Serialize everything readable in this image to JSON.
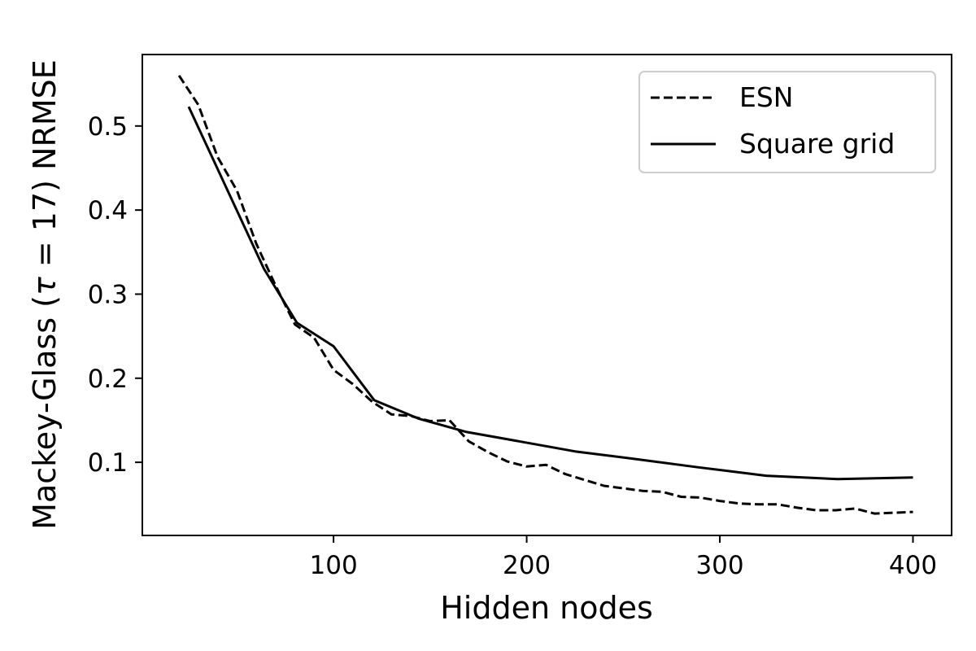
{
  "chart_data": {
    "type": "line",
    "xlabel": "Hidden nodes",
    "ylabel_prefix": "Mackey-Glass (",
    "ylabel_tau": "τ",
    "ylabel_suffix": " = 17) NRMSE",
    "xlim": [
      1,
      420
    ],
    "ylim": [
      0.013,
      0.585
    ],
    "xticks": [
      100,
      200,
      300,
      400
    ],
    "yticks": [
      0.1,
      0.2,
      0.3,
      0.4,
      0.5
    ],
    "xtick_labels": [
      "100",
      "200",
      "300",
      "400"
    ],
    "ytick_labels": [
      "0.1",
      "0.2",
      "0.3",
      "0.4",
      "0.5"
    ],
    "grid": false,
    "legend_position": "top-right",
    "series": [
      {
        "name": "ESN",
        "linestyle": "dashed",
        "color": "#000000",
        "x": [
          20,
          30,
          40,
          50,
          60,
          70,
          80,
          90,
          100,
          110,
          120,
          130,
          140,
          150,
          160,
          170,
          180,
          190,
          200,
          210,
          220,
          230,
          240,
          250,
          260,
          270,
          280,
          290,
          300,
          310,
          320,
          330,
          340,
          350,
          360,
          370,
          380,
          390,
          400
        ],
        "y": [
          0.56,
          0.525,
          0.463,
          0.423,
          0.36,
          0.31,
          0.264,
          0.248,
          0.21,
          0.193,
          0.172,
          0.157,
          0.155,
          0.149,
          0.15,
          0.125,
          0.112,
          0.101,
          0.095,
          0.097,
          0.086,
          0.079,
          0.072,
          0.069,
          0.066,
          0.065,
          0.059,
          0.058,
          0.054,
          0.051,
          0.05,
          0.05,
          0.046,
          0.043,
          0.043,
          0.045,
          0.039,
          0.04,
          0.041
        ]
      },
      {
        "name": "Square grid",
        "linestyle": "solid",
        "color": "#000000",
        "x": [
          25,
          64,
          81,
          100,
          121,
          144,
          169,
          196,
          225,
          256,
          289,
          324,
          361,
          400
        ],
        "y": [
          0.523,
          0.33,
          0.266,
          0.238,
          0.174,
          0.152,
          0.136,
          0.125,
          0.113,
          0.104,
          0.094,
          0.084,
          0.08,
          0.082
        ]
      }
    ]
  }
}
